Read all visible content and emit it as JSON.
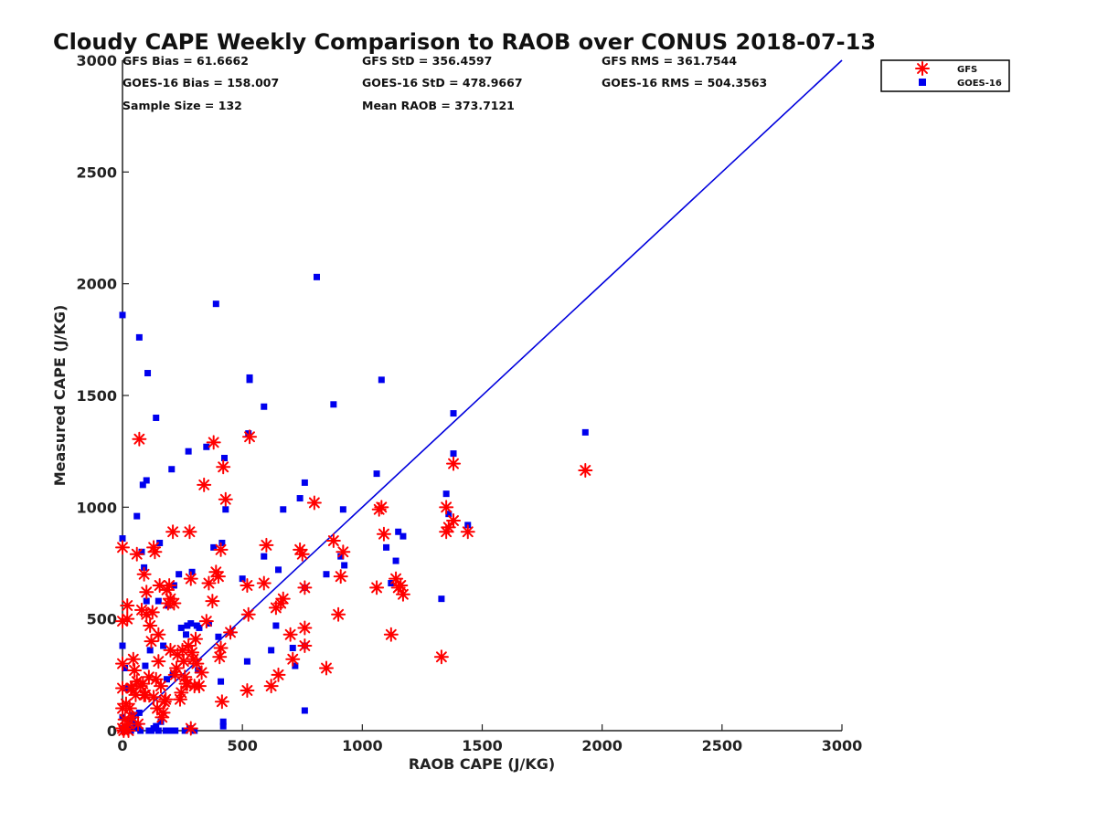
{
  "chart_data": {
    "type": "scatter",
    "title": "Cloudy CAPE Weekly Comparison to RAOB over CONUS 2018-07-13",
    "xlabel": "RAOB CAPE (J/KG)",
    "ylabel": "Measured CAPE (J/KG)",
    "xlim": [
      0,
      3000
    ],
    "ylim": [
      0,
      3000
    ],
    "xticks": [
      0,
      500,
      1000,
      1500,
      2000,
      2500,
      3000
    ],
    "yticks": [
      0,
      500,
      1000,
      1500,
      2000,
      2500,
      3000
    ],
    "xtick_labels": [
      "0",
      "500",
      "1000",
      "1500",
      "2000",
      "2500",
      "3000"
    ],
    "ytick_labels": [
      "0",
      "500",
      "1000",
      "1500",
      "2000",
      "2500",
      "3000"
    ],
    "stats": [
      "GFS Bias = 61.6662",
      "GOES-16 Bias = 158.007",
      "Sample Size = 132",
      "GFS StD = 356.4597",
      "GOES-16 StD = 478.9667",
      "Mean RAOB = 373.7121",
      "GFS RMS = 361.7544",
      "GOES-16 RMS = 504.3563"
    ],
    "legend_position": "top-right",
    "reference_line": {
      "name": "1:1 line",
      "color": "#0000dd",
      "x": [
        0,
        3000
      ],
      "y": [
        0,
        3000
      ]
    },
    "series": [
      {
        "name": "GFS",
        "marker": "asterisk",
        "color": "#ff0000",
        "points": [
          [
            0,
            820
          ],
          [
            0,
            490
          ],
          [
            0,
            300
          ],
          [
            0,
            100
          ],
          [
            0,
            10
          ],
          [
            5,
            0
          ],
          [
            10,
            50
          ],
          [
            15,
            120
          ],
          [
            20,
            560
          ],
          [
            20,
            500
          ],
          [
            25,
            30
          ],
          [
            25,
            0
          ],
          [
            30,
            100
          ],
          [
            35,
            190
          ],
          [
            40,
            60
          ],
          [
            45,
            320
          ],
          [
            50,
            270
          ],
          [
            55,
            160
          ],
          [
            60,
            790
          ],
          [
            65,
            30
          ],
          [
            70,
            1305
          ],
          [
            75,
            200
          ],
          [
            80,
            540
          ],
          [
            85,
            210
          ],
          [
            90,
            700
          ],
          [
            95,
            160
          ],
          [
            100,
            520
          ],
          [
            100,
            620
          ],
          [
            110,
            240
          ],
          [
            115,
            470
          ],
          [
            120,
            400
          ],
          [
            125,
            530
          ],
          [
            130,
            150
          ],
          [
            130,
            820
          ],
          [
            135,
            800
          ],
          [
            140,
            230
          ],
          [
            145,
            100
          ],
          [
            150,
            310
          ],
          [
            150,
            430
          ],
          [
            155,
            650
          ],
          [
            160,
            200
          ],
          [
            165,
            60
          ],
          [
            170,
            80
          ],
          [
            175,
            130
          ],
          [
            180,
            140
          ],
          [
            185,
            630
          ],
          [
            190,
            570
          ],
          [
            195,
            650
          ],
          [
            200,
            360
          ],
          [
            200,
            590
          ],
          [
            210,
            890
          ],
          [
            215,
            570
          ],
          [
            220,
            250
          ],
          [
            225,
            280
          ],
          [
            230,
            340
          ],
          [
            240,
            140
          ],
          [
            245,
            170
          ],
          [
            250,
            360
          ],
          [
            255,
            310
          ],
          [
            260,
            240
          ],
          [
            265,
            210
          ],
          [
            270,
            210
          ],
          [
            275,
            380
          ],
          [
            280,
            890
          ],
          [
            285,
            680
          ],
          [
            285,
            10
          ],
          [
            290,
            350
          ],
          [
            295,
            320
          ],
          [
            300,
            200
          ],
          [
            305,
            410
          ],
          [
            310,
            300
          ],
          [
            320,
            200
          ],
          [
            330,
            260
          ],
          [
            340,
            1100
          ],
          [
            350,
            490
          ],
          [
            360,
            660
          ],
          [
            375,
            580
          ],
          [
            380,
            1290
          ],
          [
            390,
            710
          ],
          [
            400,
            690
          ],
          [
            405,
            330
          ],
          [
            410,
            370
          ],
          [
            410,
            810
          ],
          [
            415,
            130
          ],
          [
            420,
            1180
          ],
          [
            430,
            1035
          ],
          [
            450,
            440
          ],
          [
            520,
            180
          ],
          [
            520,
            650
          ],
          [
            525,
            520
          ],
          [
            530,
            1315
          ],
          [
            590,
            660
          ],
          [
            600,
            830
          ],
          [
            620,
            200
          ],
          [
            640,
            550
          ],
          [
            650,
            250
          ],
          [
            660,
            570
          ],
          [
            670,
            590
          ],
          [
            700,
            430
          ],
          [
            710,
            320
          ],
          [
            740,
            810
          ],
          [
            750,
            790
          ],
          [
            760,
            460
          ],
          [
            760,
            380
          ],
          [
            760,
            640
          ],
          [
            800,
            1020
          ],
          [
            850,
            280
          ],
          [
            880,
            850
          ],
          [
            900,
            520
          ],
          [
            910,
            690
          ],
          [
            920,
            800
          ],
          [
            1060,
            640
          ],
          [
            1080,
            1000
          ],
          [
            1090,
            880
          ],
          [
            1120,
            430
          ],
          [
            1140,
            680
          ],
          [
            1150,
            640
          ],
          [
            1160,
            650
          ],
          [
            1170,
            610
          ],
          [
            1330,
            330
          ],
          [
            1350,
            1000
          ],
          [
            1350,
            890
          ],
          [
            1360,
            910
          ],
          [
            1380,
            1195
          ],
          [
            1380,
            940
          ],
          [
            1440,
            890
          ],
          [
            1930,
            1165
          ],
          [
            1070,
            990
          ],
          [
            0,
            190
          ],
          [
            40,
            190
          ],
          [
            60,
            220
          ],
          [
            90,
            160
          ]
        ]
      },
      {
        "name": "GOES-16",
        "marker": "square",
        "color": "#0000ee",
        "points": [
          [
            0,
            1860
          ],
          [
            0,
            860
          ],
          [
            0,
            380
          ],
          [
            0,
            60
          ],
          [
            0,
            10
          ],
          [
            5,
            0
          ],
          [
            10,
            280
          ],
          [
            15,
            190
          ],
          [
            20,
            20
          ],
          [
            25,
            10
          ],
          [
            30,
            50
          ],
          [
            35,
            0
          ],
          [
            40,
            40
          ],
          [
            45,
            70
          ],
          [
            50,
            10
          ],
          [
            55,
            30
          ],
          [
            60,
            960
          ],
          [
            65,
            20
          ],
          [
            70,
            1760
          ],
          [
            75,
            0
          ],
          [
            80,
            800
          ],
          [
            85,
            1100
          ],
          [
            90,
            730
          ],
          [
            95,
            290
          ],
          [
            100,
            1120
          ],
          [
            100,
            580
          ],
          [
            105,
            1600
          ],
          [
            110,
            0
          ],
          [
            115,
            360
          ],
          [
            120,
            0
          ],
          [
            130,
            10
          ],
          [
            140,
            1400
          ],
          [
            150,
            580
          ],
          [
            155,
            840
          ],
          [
            170,
            380
          ],
          [
            180,
            0
          ],
          [
            185,
            230
          ],
          [
            190,
            560
          ],
          [
            200,
            0
          ],
          [
            205,
            1170
          ],
          [
            210,
            250
          ],
          [
            215,
            650
          ],
          [
            220,
            0
          ],
          [
            235,
            700
          ],
          [
            245,
            460
          ],
          [
            260,
            0
          ],
          [
            265,
            430
          ],
          [
            270,
            470
          ],
          [
            275,
            1250
          ],
          [
            285,
            480
          ],
          [
            290,
            710
          ],
          [
            300,
            0
          ],
          [
            310,
            470
          ],
          [
            315,
            270
          ],
          [
            320,
            460
          ],
          [
            350,
            1270
          ],
          [
            360,
            480
          ],
          [
            380,
            820
          ],
          [
            390,
            1910
          ],
          [
            400,
            420
          ],
          [
            410,
            220
          ],
          [
            415,
            840
          ],
          [
            420,
            40
          ],
          [
            420,
            20
          ],
          [
            425,
            1220
          ],
          [
            430,
            990
          ],
          [
            450,
            440
          ],
          [
            500,
            680
          ],
          [
            520,
            310
          ],
          [
            525,
            1330
          ],
          [
            530,
            1580
          ],
          [
            530,
            1570
          ],
          [
            590,
            1450
          ],
          [
            590,
            780
          ],
          [
            620,
            360
          ],
          [
            640,
            470
          ],
          [
            650,
            720
          ],
          [
            670,
            990
          ],
          [
            710,
            370
          ],
          [
            720,
            290
          ],
          [
            740,
            1040
          ],
          [
            760,
            1110
          ],
          [
            760,
            640
          ],
          [
            760,
            380
          ],
          [
            760,
            90
          ],
          [
            810,
            2030
          ],
          [
            850,
            700
          ],
          [
            880,
            1460
          ],
          [
            910,
            780
          ],
          [
            920,
            990
          ],
          [
            925,
            740
          ],
          [
            1060,
            1150
          ],
          [
            1080,
            1570
          ],
          [
            1100,
            820
          ],
          [
            1120,
            660
          ],
          [
            1140,
            760
          ],
          [
            1150,
            890
          ],
          [
            1170,
            870
          ],
          [
            1330,
            590
          ],
          [
            1350,
            1060
          ],
          [
            1360,
            970
          ],
          [
            1380,
            1420
          ],
          [
            1380,
            1240
          ],
          [
            1440,
            920
          ],
          [
            1930,
            1335
          ],
          [
            280,
            10
          ],
          [
            160,
            40
          ],
          [
            70,
            80
          ],
          [
            150,
            0
          ],
          [
            140,
            20
          ]
        ]
      }
    ]
  }
}
